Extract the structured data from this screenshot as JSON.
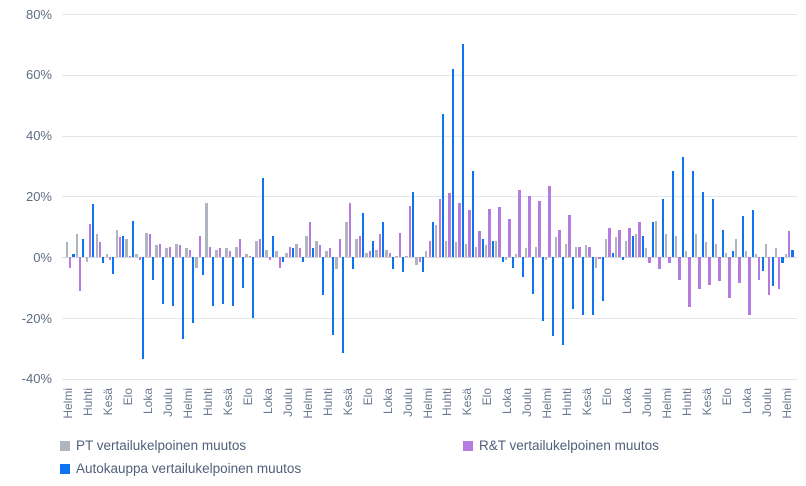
{
  "chart_data": {
    "type": "bar",
    "title": "",
    "xlabel": "",
    "ylabel": "",
    "ylim": [
      -40,
      80
    ],
    "grid": true,
    "legend_position": "bottom",
    "y_ticks": [
      "80%",
      "60%",
      "40%",
      "20%",
      "0%",
      "-20%",
      "-40%"
    ],
    "y_tick_values": [
      80,
      60,
      40,
      20,
      0,
      -20,
      -40
    ],
    "x_tick_labels": [
      "Helmi",
      "Huhti",
      "Kesä",
      "Elo",
      "Loka",
      "Joulu",
      "Helmi",
      "Huhti",
      "Kesä",
      "Elo",
      "Loka",
      "Joulu",
      "Helmi",
      "Huhti",
      "Kesä",
      "Elo",
      "Loka",
      "Joulu",
      "Helmi",
      "Huhti",
      "Kesä",
      "Elo",
      "Loka",
      "Joulu",
      "Helmi",
      "Huhti",
      "Kesä",
      "Elo",
      "Loka",
      "Joulu",
      "Helmi",
      "Huhti",
      "Kesä",
      "Elo",
      "Loka",
      "Joulu",
      "Helmi"
    ],
    "x_tick_every_n_categories": 2,
    "n_categories": 73,
    "series": [
      {
        "name": "PT vertailukelpoinen muutos",
        "color": "#aeb4c0",
        "values": [
          5,
          7.5,
          -1.5,
          7.5,
          1,
          9,
          6,
          1,
          8,
          4,
          3,
          4.5,
          3,
          -3.5,
          18,
          2.5,
          3,
          3.5,
          1,
          5.5,
          2.5,
          2,
          1.5,
          4.5,
          7,
          5.5,
          2,
          -4,
          11.5,
          6,
          1.5,
          2.5,
          2.5,
          0.5,
          0.5,
          -2.5,
          2,
          10.5,
          5.5,
          5,
          4.5,
          3.5,
          4,
          5.5,
          -1,
          1,
          3,
          3.5,
          -1,
          6.5,
          4.5,
          3.5,
          4,
          -3.5,
          6,
          6.5,
          5.5,
          7.5,
          3,
          12,
          7.5,
          7,
          2,
          7.5,
          5,
          4.5,
          1.5,
          6,
          2,
          1,
          4.5,
          3,
          1
        ]
      },
      {
        "name": "R&T vertailukelpoinen muutos",
        "color": "#b57ce0",
        "values": [
          -3.5,
          -11,
          11,
          5,
          -1,
          6.5,
          0.5,
          -1,
          7.5,
          4.5,
          3.5,
          4,
          2.5,
          7,
          3.5,
          3,
          2,
          6,
          0.5,
          6,
          -1,
          -3.5,
          3.5,
          3,
          11.5,
          4,
          3,
          6,
          18,
          7,
          2,
          7.5,
          1.5,
          8,
          17,
          -1.5,
          5.5,
          19,
          21,
          18,
          15.5,
          8.5,
          16,
          16.5,
          12.5,
          22,
          20,
          18.5,
          23.5,
          9,
          14,
          3.5,
          3.5,
          -0.5,
          9.5,
          9,
          9.5,
          11.5,
          -2,
          -4,
          -2,
          -7.5,
          -16.5,
          -10.5,
          -9,
          -8,
          -13.5,
          -8.5,
          -19,
          -7.5,
          -12.5,
          -10.5,
          8.5
        ]
      },
      {
        "name": "Autokauppa vertailukelpoinen muutos",
        "color": "#0d73f0",
        "values": [
          1,
          6,
          17.5,
          -2,
          -5.5,
          7,
          12,
          -33.5,
          -7.5,
          -15.5,
          -16,
          -27,
          -21.5,
          -6,
          -16,
          -15.5,
          -16,
          -10,
          -20,
          26,
          7,
          -1.5,
          3,
          -1.5,
          3,
          -12.5,
          -25.5,
          -31.5,
          -4,
          14.5,
          5.5,
          11.5,
          -4,
          -5,
          21.5,
          -5,
          11.5,
          47,
          62,
          70,
          28.5,
          6,
          5.5,
          -1.5,
          -3.5,
          -6.5,
          -12,
          -21,
          -26,
          -29,
          -17,
          -19,
          -19,
          -14.5,
          1.5,
          -1,
          7,
          7,
          11.5,
          19,
          28.5,
          33,
          28.5,
          21.5,
          19,
          9,
          2,
          13.5,
          15.5,
          -4.5,
          -9.5,
          -2,
          2.5
        ]
      }
    ]
  },
  "legend": {
    "items": [
      {
        "label": "PT vertailukelpoinen muutos"
      },
      {
        "label": "R&T vertailukelpoinen muutos"
      },
      {
        "label": "Autokauppa vertailukelpoinen muutos"
      }
    ]
  }
}
